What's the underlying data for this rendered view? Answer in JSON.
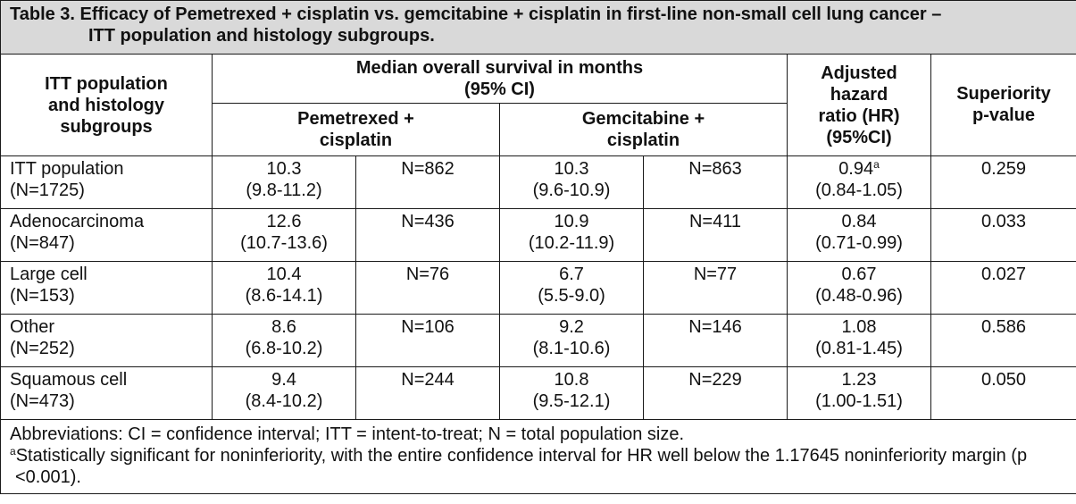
{
  "table": {
    "caption_line1": "Table 3. Efficacy of Pemetrexed + cisplatin vs. gemcitabine + cisplatin in first-line non-small cell lung cancer –",
    "caption_line2": "ITT population and histology subgroups.",
    "headers": {
      "group_col": [
        "ITT population",
        "and histology",
        "subgroups"
      ],
      "median_os": [
        "Median overall survival in months",
        "(95% CI)"
      ],
      "pem_cis": [
        "Pemetrexed +",
        "cisplatin"
      ],
      "gem_cis": [
        "Gemcitabine +",
        "cisplatin"
      ],
      "hr": [
        "Adjusted",
        "hazard",
        "ratio (HR)",
        "(95%CI)"
      ],
      "pvalue": [
        "Superiority",
        "p-value"
      ]
    },
    "rows": [
      {
        "group": "ITT population",
        "group_n": "(N=1725)",
        "pem_median": "10.3",
        "pem_ci": "(9.8-11.2)",
        "pem_n": "N=862",
        "gem_median": "10.3",
        "gem_ci": "(9.6-10.9)",
        "gem_n": "N=863",
        "hr": "0.94",
        "hr_sup": "a",
        "hr_ci": "(0.84-1.05)",
        "p": "0.259"
      },
      {
        "group": "Adenocarcinoma",
        "group_n": "(N=847)",
        "pem_median": "12.6",
        "pem_ci": "(10.7-13.6)",
        "pem_n": "N=436",
        "gem_median": "10.9",
        "gem_ci": "(10.2-11.9)",
        "gem_n": "N=411",
        "hr": "0.84",
        "hr_sup": "",
        "hr_ci": "(0.71-0.99)",
        "p": "0.033"
      },
      {
        "group": "Large cell",
        "group_n": "(N=153)",
        "pem_median": "10.4",
        "pem_ci": "(8.6-14.1)",
        "pem_n": "N=76",
        "gem_median": "6.7",
        "gem_ci": "(5.5-9.0)",
        "gem_n": "N=77",
        "hr": "0.67",
        "hr_sup": "",
        "hr_ci": "(0.48-0.96)",
        "p": "0.027"
      },
      {
        "group": "Other",
        "group_n": "(N=252)",
        "pem_median": "8.6",
        "pem_ci": "(6.8-10.2)",
        "pem_n": "N=106",
        "gem_median": "9.2",
        "gem_ci": "(8.1-10.6)",
        "gem_n": "N=146",
        "hr": "1.08",
        "hr_sup": "",
        "hr_ci": "(0.81-1.45)",
        "p": "0.586"
      },
      {
        "group": "Squamous cell",
        "group_n": "(N=473)",
        "pem_median": "9.4",
        "pem_ci": "(8.4-10.2)",
        "pem_n": "N=244",
        "gem_median": "10.8",
        "gem_ci": "(9.5-12.1)",
        "gem_n": "N=229",
        "hr": "1.23",
        "hr_sup": "",
        "hr_ci": "(1.00-1.51)",
        "p": "0.050"
      }
    ],
    "footnotes": {
      "abbreviations": "Abbreviations: CI = confidence interval; ITT = intent-to-treat; N = total population size.",
      "a_marker": "a",
      "a_text": "Statistically significant for noninferiority, with the entire confidence interval for HR well below the 1.17645 noninferiority margin (p <0.001)."
    }
  }
}
